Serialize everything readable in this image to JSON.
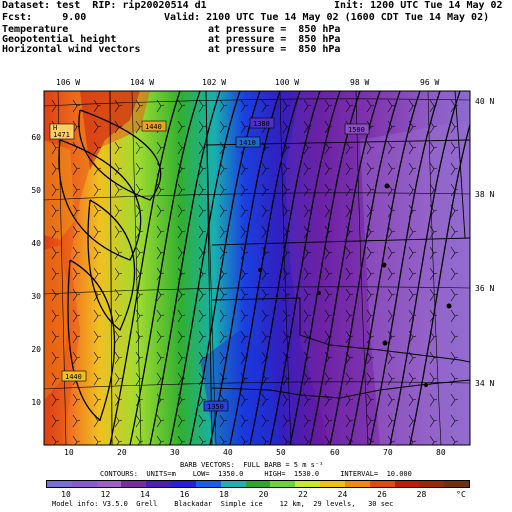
{
  "header": {
    "dataset": "Dataset: test  RIP: rip20020514 d1",
    "init": "Init: 1200 UTC Tue 14 May 02",
    "fcst": "Fcst:     9.00",
    "valid": "Valid: 2100 UTC Tue 14 May 02 (1600 CDT Tue 14 May 02)",
    "fields": [
      {
        "name": "Temperature",
        "level": "at pressure =  850 hPa"
      },
      {
        "name": "Geopotential height",
        "level": "at pressure =  850 hPa"
      },
      {
        "name": "Horizontal wind vectors",
        "level": "at pressure =  850 hPa"
      }
    ]
  },
  "map": {
    "lon_labels_top": [
      "106 W",
      "104 W",
      "102 W",
      "100 W",
      "98 W",
      "96 W"
    ],
    "lat_labels_right": [
      "40 N",
      "38 N",
      "36 N",
      "34 N"
    ],
    "grid_x_ticks": [
      "10",
      "20",
      "30",
      "40",
      "50",
      "60",
      "70",
      "80"
    ],
    "grid_y_ticks": [
      "60",
      "50",
      "40",
      "30",
      "20",
      "10"
    ],
    "contour_labels": [
      "1471",
      "1440",
      "1440",
      "1380",
      "1500",
      "1410",
      "1350",
      "1380",
      "H"
    ]
  },
  "footer": {
    "barb_line": "BARB VECTORS:  FULL BARB = 5 m s⁻¹",
    "contours_line": "CONTOURS:  UNITS=m    LOW=  1350.0     HIGH=  1530.0     INTERVAL=  10.000",
    "colorbar_labels": [
      "10",
      "12",
      "14",
      "16",
      "18",
      "20",
      "22",
      "24",
      "26",
      "28",
      "°C"
    ],
    "colorbar_colors": [
      "#7a6fd6",
      "#8a5bd0",
      "#a05fc6",
      "#7b2da0",
      "#4a1fb3",
      "#2a1ee0",
      "#1a5ef0",
      "#20b0b0",
      "#2ca82c",
      "#6ed23a",
      "#c8e830",
      "#f0c01a",
      "#f08a10",
      "#e04a10",
      "#c01a08",
      "#9a2808",
      "#703010"
    ],
    "model_info": "Model info: V3.5.0  Grell    Blackadar  Simple ice    12 km,  29 levels,   30 sec"
  }
}
